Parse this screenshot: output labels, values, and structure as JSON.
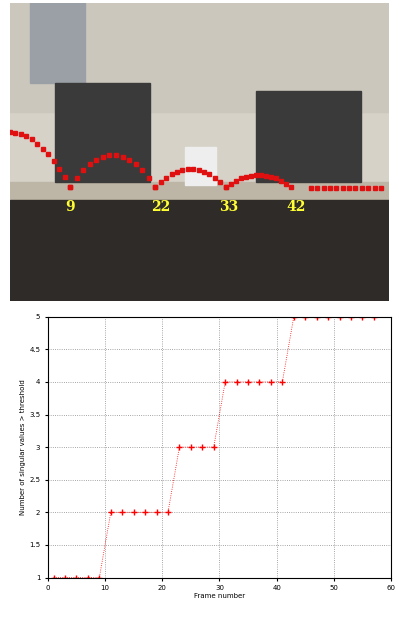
{
  "chart_data": [
    {
      "type": "image",
      "annotations": [
        "9",
        "22",
        "33",
        "42"
      ]
    },
    {
      "type": "line",
      "x": [
        1,
        3,
        5,
        7,
        9,
        11,
        13,
        15,
        17,
        19,
        21,
        23,
        25,
        27,
        29,
        31,
        33,
        35,
        37,
        39,
        41,
        43,
        45,
        47,
        49,
        51,
        53,
        55,
        57
      ],
      "values": [
        1,
        1,
        1,
        1,
        1,
        2,
        2,
        2,
        2,
        2,
        2,
        3,
        3,
        3,
        3,
        4,
        4,
        4,
        4,
        4,
        4,
        5,
        5,
        5,
        5,
        5,
        5,
        5,
        5
      ],
      "color": "#ff0000",
      "marker": "plus",
      "line_style": "dotted",
      "x_label": "Frame number",
      "y_label": "Number of singular values > threshold",
      "xlim": [
        0,
        60
      ],
      "xticks": [
        0,
        10,
        20,
        30,
        40,
        50,
        60
      ],
      "ylim": [
        1,
        5
      ],
      "yticks": [
        1,
        1.5,
        2,
        2.5,
        3,
        3.5,
        4,
        4.5,
        5
      ],
      "grid": true
    }
  ]
}
